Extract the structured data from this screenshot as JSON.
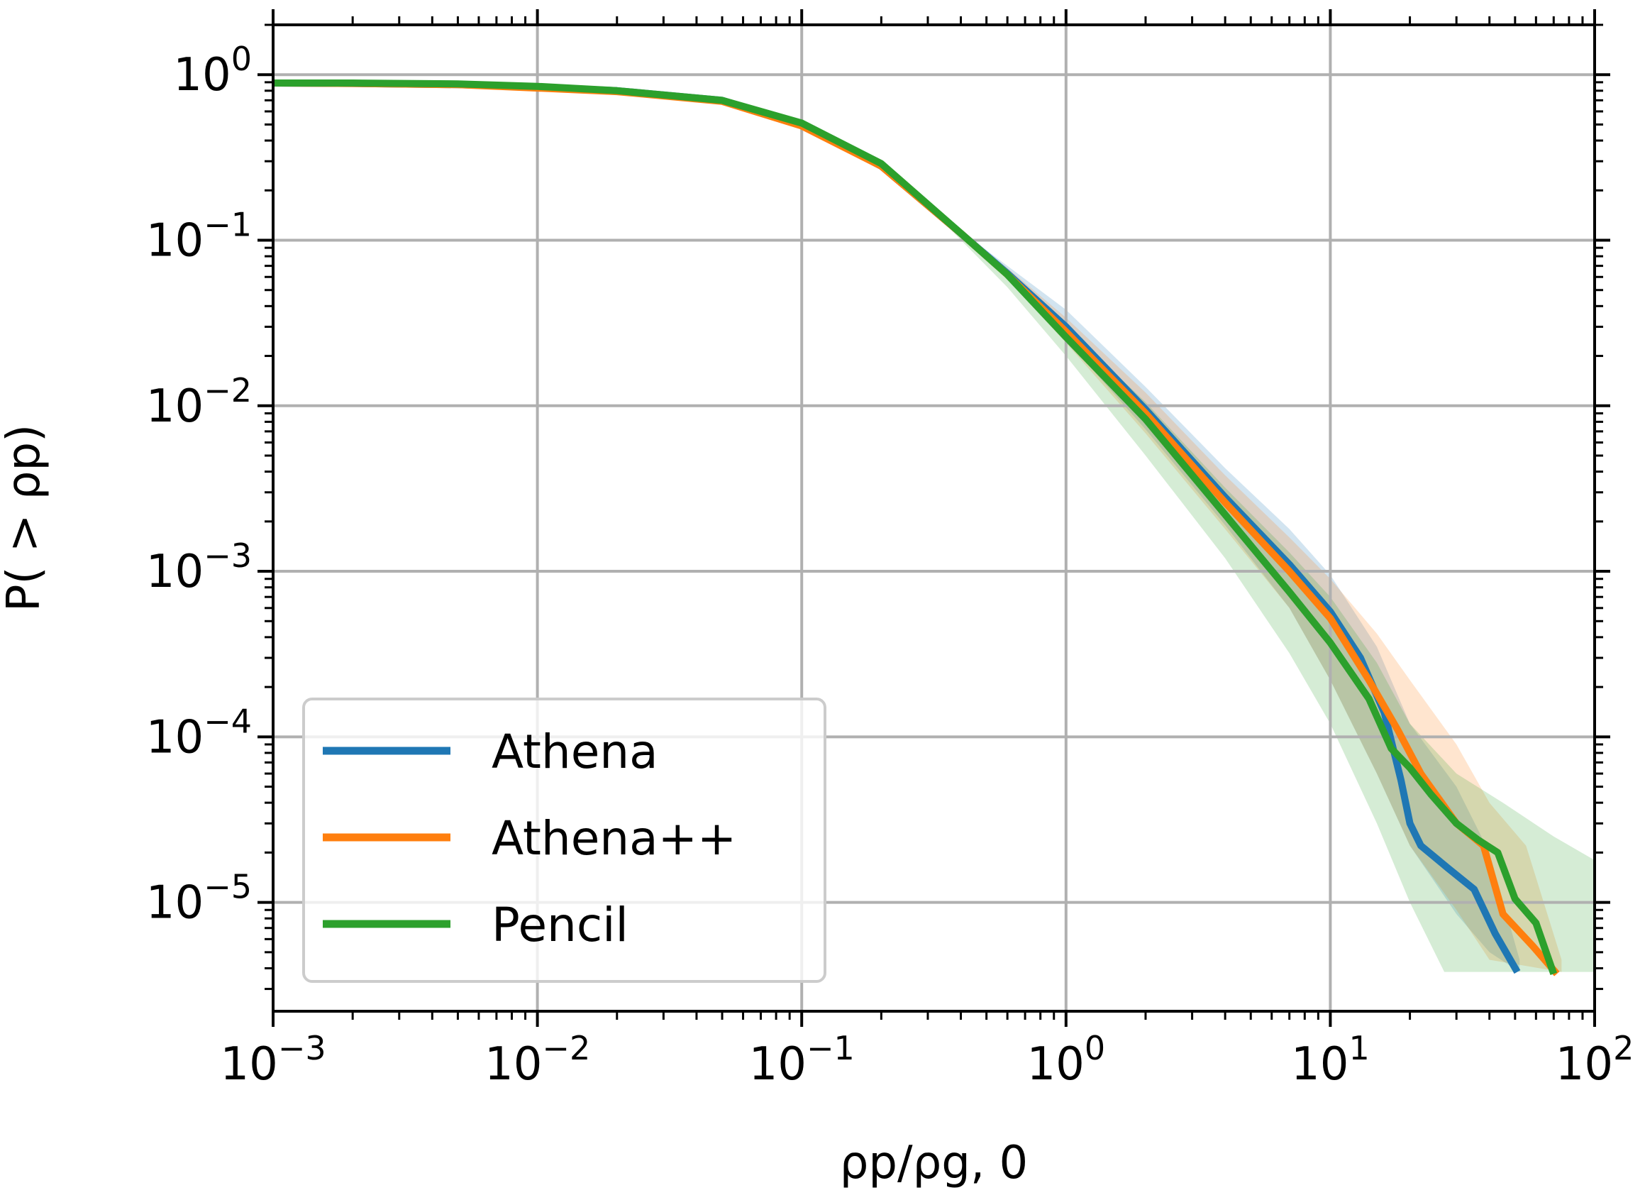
{
  "chart_data": {
    "type": "line",
    "xscale": "log",
    "yscale": "log",
    "xlim": [
      0.001,
      100
    ],
    "ylim": [
      2.2e-06,
      2.0
    ],
    "grid": true,
    "legend_position": "lower-left",
    "xlabel": "ρp/ρg, 0",
    "ylabel": "P( > ρp)",
    "x_ticks": [
      {
        "value": 0.001,
        "base": "10",
        "exp": "−3"
      },
      {
        "value": 0.01,
        "base": "10",
        "exp": "−2"
      },
      {
        "value": 0.1,
        "base": "10",
        "exp": "−1"
      },
      {
        "value": 1,
        "base": "10",
        "exp": "0"
      },
      {
        "value": 10,
        "base": "10",
        "exp": "1"
      },
      {
        "value": 100,
        "base": "10",
        "exp": "2"
      }
    ],
    "y_ticks": [
      {
        "value": 1,
        "base": "10",
        "exp": "0"
      },
      {
        "value": 0.1,
        "base": "10",
        "exp": "−1"
      },
      {
        "value": 0.01,
        "base": "10",
        "exp": "−2"
      },
      {
        "value": 0.001,
        "base": "10",
        "exp": "−3"
      },
      {
        "value": 0.0001,
        "base": "10",
        "exp": "−4"
      },
      {
        "value": 1e-05,
        "base": "10",
        "exp": "−5"
      }
    ],
    "series": [
      {
        "name": "Athena",
        "color": "#1f77b4",
        "points": [
          [
            0.001,
            0.89
          ],
          [
            0.002,
            0.885
          ],
          [
            0.005,
            0.87
          ],
          [
            0.01,
            0.84
          ],
          [
            0.02,
            0.8
          ],
          [
            0.05,
            0.7
          ],
          [
            0.1,
            0.5
          ],
          [
            0.2,
            0.28
          ],
          [
            0.4,
            0.11
          ],
          [
            0.6,
            0.063
          ],
          [
            1.0,
            0.03
          ],
          [
            2.0,
            0.0095
          ],
          [
            4.0,
            0.0028
          ],
          [
            7.0,
            0.0011
          ],
          [
            10.0,
            0.00057
          ],
          [
            13.0,
            0.0003
          ],
          [
            16.0,
            0.00014
          ],
          [
            18.5,
            5.5e-05
          ],
          [
            20.0,
            3e-05
          ],
          [
            22.0,
            2.2e-05
          ],
          [
            28.0,
            1.6e-05
          ],
          [
            35.0,
            1.2e-05
          ],
          [
            42.0,
            6.5e-06
          ],
          [
            51.0,
            3.8e-06
          ]
        ],
        "band_upper": [
          [
            0.3,
            0.16
          ],
          [
            0.6,
            0.07
          ],
          [
            1.0,
            0.038
          ],
          [
            2.0,
            0.013
          ],
          [
            4.0,
            0.0042
          ],
          [
            7.0,
            0.0018
          ],
          [
            10.0,
            0.00095
          ],
          [
            15.0,
            0.00035
          ],
          [
            20.0,
            0.00012
          ],
          [
            30.0,
            5e-05
          ],
          [
            40.0,
            2e-05
          ],
          [
            52.0,
            4.5e-06
          ]
        ],
        "band_lower": [
          [
            0.3,
            0.16
          ],
          [
            0.6,
            0.058
          ],
          [
            1.0,
            0.025
          ],
          [
            2.0,
            0.0072
          ],
          [
            4.0,
            0.0019
          ],
          [
            7.0,
            0.0006
          ],
          [
            10.0,
            0.00022
          ],
          [
            15.0,
            6e-05
          ],
          [
            20.0,
            2.2e-05
          ],
          [
            30.0,
            8.5e-06
          ],
          [
            40.0,
            5e-06
          ],
          [
            52.0,
            3.8e-06
          ]
        ]
      },
      {
        "name": "Athena++",
        "color": "#ff7f0e",
        "points": [
          [
            0.001,
            0.89
          ],
          [
            0.002,
            0.885
          ],
          [
            0.005,
            0.87
          ],
          [
            0.01,
            0.83
          ],
          [
            0.02,
            0.79
          ],
          [
            0.05,
            0.69
          ],
          [
            0.1,
            0.49
          ],
          [
            0.2,
            0.28
          ],
          [
            0.4,
            0.11
          ],
          [
            0.6,
            0.062
          ],
          [
            1.0,
            0.028
          ],
          [
            2.0,
            0.009
          ],
          [
            4.0,
            0.0026
          ],
          [
            7.0,
            0.001
          ],
          [
            10.0,
            0.00052
          ],
          [
            14.0,
            0.00022
          ],
          [
            18.0,
            0.00011
          ],
          [
            22.0,
            6e-05
          ],
          [
            30.0,
            3e-05
          ],
          [
            38.0,
            2.2e-05
          ],
          [
            45.0,
            8.5e-06
          ],
          [
            58.0,
            5.5e-06
          ],
          [
            72.0,
            3.7e-06
          ]
        ],
        "band_upper": [
          [
            0.3,
            0.16
          ],
          [
            0.6,
            0.068
          ],
          [
            1.0,
            0.034
          ],
          [
            2.0,
            0.012
          ],
          [
            4.0,
            0.0038
          ],
          [
            7.0,
            0.0016
          ],
          [
            10.0,
            0.0009
          ],
          [
            15.0,
            0.00042
          ],
          [
            20.0,
            0.00022
          ],
          [
            30.0,
            9e-05
          ],
          [
            40.0,
            4e-05
          ],
          [
            55.0,
            2.2e-05
          ],
          [
            75.0,
            4.5e-06
          ]
        ],
        "band_lower": [
          [
            0.3,
            0.16
          ],
          [
            0.6,
            0.058
          ],
          [
            1.0,
            0.024
          ],
          [
            2.0,
            0.0068
          ],
          [
            4.0,
            0.0018
          ],
          [
            7.0,
            0.0006
          ],
          [
            10.0,
            0.00022
          ],
          [
            15.0,
            6e-05
          ],
          [
            20.0,
            2.2e-05
          ],
          [
            30.0,
            9e-06
          ],
          [
            40.0,
            4.5e-06
          ],
          [
            75.0,
            3.8e-06
          ]
        ]
      },
      {
        "name": "Pencil",
        "color": "#2ca02c",
        "points": [
          [
            0.001,
            0.89
          ],
          [
            0.002,
            0.89
          ],
          [
            0.005,
            0.88
          ],
          [
            0.01,
            0.85
          ],
          [
            0.02,
            0.8
          ],
          [
            0.05,
            0.7
          ],
          [
            0.1,
            0.51
          ],
          [
            0.2,
            0.29
          ],
          [
            0.4,
            0.11
          ],
          [
            0.6,
            0.062
          ],
          [
            1.0,
            0.026
          ],
          [
            2.0,
            0.0083
          ],
          [
            4.0,
            0.0022
          ],
          [
            7.0,
            0.00075
          ],
          [
            10.0,
            0.00037
          ],
          [
            14.0,
            0.00017
          ],
          [
            17.0,
            8.5e-05
          ],
          [
            20.0,
            6.5e-05
          ],
          [
            24.0,
            4.5e-05
          ],
          [
            30.0,
            3e-05
          ],
          [
            36.0,
            2.4e-05
          ],
          [
            43.0,
            2e-05
          ],
          [
            50.0,
            1.05e-05
          ],
          [
            60.0,
            7.5e-06
          ],
          [
            70.0,
            3.7e-06
          ]
        ],
        "band_upper": [
          [
            0.3,
            0.16
          ],
          [
            0.6,
            0.066
          ],
          [
            1.0,
            0.03
          ],
          [
            2.0,
            0.0105
          ],
          [
            4.0,
            0.0032
          ],
          [
            7.0,
            0.0013
          ],
          [
            10.0,
            0.0007
          ],
          [
            15.0,
            0.00028
          ],
          [
            20.0,
            0.00012
          ],
          [
            30.0,
            6e-05
          ],
          [
            45.0,
            4e-05
          ],
          [
            70.0,
            2.5e-05
          ],
          [
            100.0,
            1.8e-05
          ]
        ],
        "band_lower": [
          [
            0.3,
            0.16
          ],
          [
            0.6,
            0.052
          ],
          [
            1.0,
            0.02
          ],
          [
            2.0,
            0.005
          ],
          [
            4.0,
            0.0012
          ],
          [
            7.0,
            0.00032
          ],
          [
            10.0,
            0.00012
          ],
          [
            15.0,
            3e-05
          ],
          [
            20.0,
            1e-05
          ],
          [
            27.0,
            3.8e-06
          ],
          [
            100.0,
            3.8e-06
          ]
        ]
      }
    ]
  }
}
